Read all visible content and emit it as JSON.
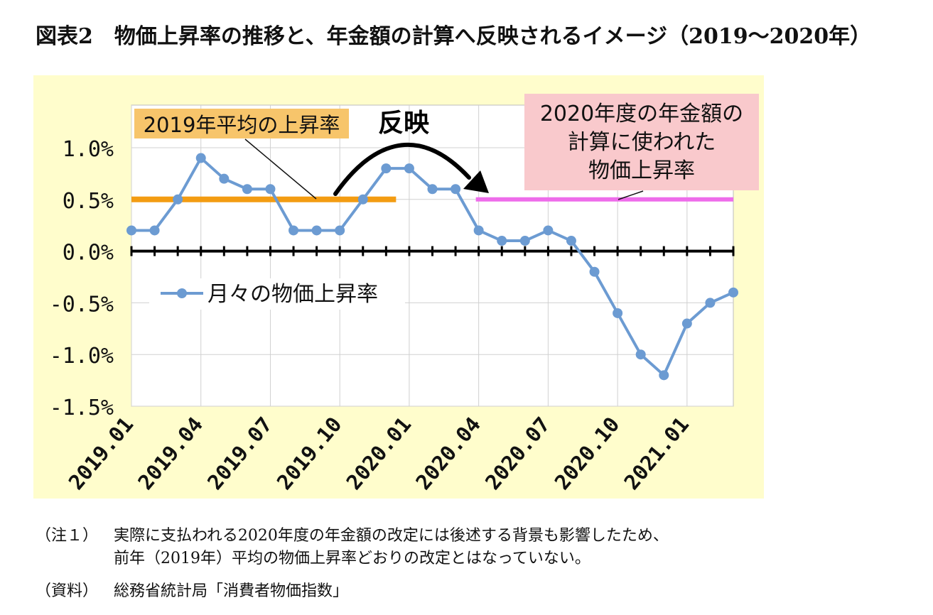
{
  "title": "図表2　物価上昇率の推移と、年金額の計算へ反映されるイメージ（2019～2020年）",
  "colors": {
    "plot_bg": "#FFFDCC",
    "series": "#6C9BD2",
    "avg_2019_line": "#F39C12",
    "avg_2019_label_bg": "#F7C56B",
    "fy2020_line": "#EE6CEA",
    "fy2020_label_bg": "#F9C9CC"
  },
  "annotations": {
    "avg_2019_label": "2019年平均の上昇率",
    "reflect_label": "反映",
    "fy2020_label": [
      "2020年度の年金額の",
      "計算に使われた",
      "物価上昇率"
    ]
  },
  "chart_data": {
    "type": "line",
    "title": "",
    "xlabel": "",
    "ylabel": "",
    "ylim": [
      -1.5,
      1.0
    ],
    "y_ticks": [
      "1.0%",
      "0.5%",
      "0.0%",
      "-0.5%",
      "-1.0%",
      "-1.5%"
    ],
    "y_tick_values": [
      1.0,
      0.5,
      0.0,
      -0.5,
      -1.0,
      -1.5
    ],
    "x_tick_labels": [
      "2019.01",
      "2019.04",
      "2019.07",
      "2019.10",
      "2020.01",
      "2020.04",
      "2020.07",
      "2020.10",
      "2021.01"
    ],
    "x_tick_indices": [
      0,
      3,
      6,
      9,
      12,
      15,
      18,
      21,
      24
    ],
    "grid": true,
    "legend": "月々の物価上昇率",
    "legend_position": "center-left",
    "series": [
      {
        "name": "月々の物価上昇率",
        "x": [
          "2019.01",
          "2019.02",
          "2019.03",
          "2019.04",
          "2019.05",
          "2019.06",
          "2019.07",
          "2019.08",
          "2019.09",
          "2019.10",
          "2019.11",
          "2019.12",
          "2020.01",
          "2020.02",
          "2020.03",
          "2020.04",
          "2020.05",
          "2020.06",
          "2020.07",
          "2020.08",
          "2020.09",
          "2020.10",
          "2020.11",
          "2020.12",
          "2021.01",
          "2021.02",
          "2021.03"
        ],
        "values": [
          0.2,
          0.2,
          0.5,
          0.9,
          0.7,
          0.6,
          0.6,
          0.2,
          0.2,
          0.2,
          0.5,
          0.8,
          0.8,
          0.6,
          0.6,
          0.2,
          0.1,
          0.1,
          0.2,
          0.1,
          -0.2,
          -0.6,
          -1.0,
          -1.2,
          -0.7,
          -0.5,
          -0.4
        ]
      }
    ],
    "reference_lines": [
      {
        "name": "2019年平均の上昇率",
        "value": 0.5,
        "from": "2019.01",
        "to": "2019.12"
      },
      {
        "name": "2020年度の年金額の計算に使われた物価上昇率",
        "value": 0.5,
        "from": "2020.04",
        "to": "2021.03"
      }
    ]
  },
  "notes": [
    {
      "label": "（注１）",
      "lines": [
        "実際に支払われる2020年度の年金額の改定には後述する背景も影響したため、",
        "前年（2019年）平均の物価上昇率どおりの改定とはなっていない。"
      ]
    },
    {
      "label": "（資料）",
      "lines": [
        "総務省統計局「消費者物価指数」"
      ]
    }
  ]
}
